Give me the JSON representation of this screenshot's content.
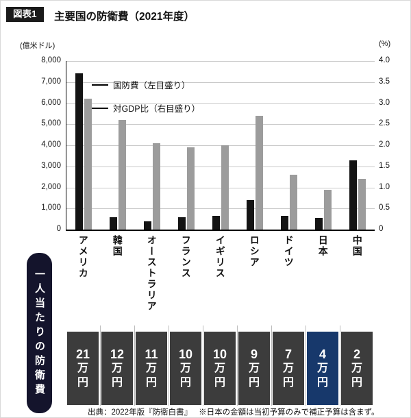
{
  "figure": {
    "badge": "図表1",
    "title": "主要国の防衛費（2021年度）"
  },
  "chart": {
    "left_axis_unit": "(億米ドル)",
    "right_axis_unit": "(%)",
    "left_ticks": [
      "8,000",
      "7,000",
      "6,000",
      "5,000",
      "4,000",
      "3,000",
      "2,000",
      "1,000",
      "0"
    ],
    "right_ticks": [
      "4.0",
      "3.5",
      "3.0",
      "2.5",
      "2.0",
      "1.5",
      "1.0",
      "0.5",
      "0"
    ],
    "legend": [
      {
        "label": "国防費（左目盛り）"
      },
      {
        "label": "対GDP比（右目盛り）"
      }
    ]
  },
  "chart_data": {
    "type": "bar",
    "title": "主要国の防衛費（2021年度）",
    "categories": [
      "アメリカ",
      "韓国",
      "オーストラリア",
      "フランス",
      "イギリス",
      "ロシア",
      "ドイツ",
      "日本",
      "中国"
    ],
    "emphasis_index": 7,
    "series": [
      {
        "name": "国防費（左目盛り）",
        "axis": "left",
        "unit": "億米ドル",
        "values": [
          7400,
          600,
          400,
          600,
          650,
          1400,
          650,
          550,
          3270
        ]
      },
      {
        "name": "対GDP比（右目盛り）",
        "axis": "right",
        "unit": "%",
        "values": [
          3.1,
          2.6,
          2.05,
          1.95,
          2.0,
          2.7,
          1.3,
          0.95,
          1.2
        ]
      }
    ],
    "left_ylim": [
      0,
      8000
    ],
    "right_ylim": [
      0,
      4.0
    ],
    "grid": true,
    "legend_position": "top-left-inside"
  },
  "per_capita": {
    "label": "一人当たりの防衛費",
    "values": [
      {
        "country": "アメリカ",
        "amount": "21",
        "unit": "万円",
        "highlight": false
      },
      {
        "country": "韓国",
        "amount": "12",
        "unit": "万円",
        "highlight": false
      },
      {
        "country": "オーストラリア",
        "amount": "11",
        "unit": "万円",
        "highlight": false
      },
      {
        "country": "フランス",
        "amount": "10",
        "unit": "万円",
        "highlight": false
      },
      {
        "country": "イギリス",
        "amount": "10",
        "unit": "万円",
        "highlight": false
      },
      {
        "country": "ロシア",
        "amount": "9",
        "unit": "万円",
        "highlight": false
      },
      {
        "country": "ドイツ",
        "amount": "7",
        "unit": "万円",
        "highlight": false
      },
      {
        "country": "日本",
        "amount": "4",
        "unit": "万円",
        "highlight": true
      },
      {
        "country": "中国",
        "amount": "2",
        "unit": "万円",
        "highlight": false
      }
    ]
  },
  "footer": {
    "source": "出典：2022年版『防衛白書』",
    "note": "※日本の金額は当初予算のみで補正予算は含まず。"
  },
  "colors": {
    "bar_black": "#141414",
    "bar_gray": "#9c9c9c",
    "box": "#3c3c3c",
    "box_highlight": "#17386b",
    "panel": "#14142c",
    "badge": "#1a1a1a",
    "grid": "#c9c9c9"
  }
}
